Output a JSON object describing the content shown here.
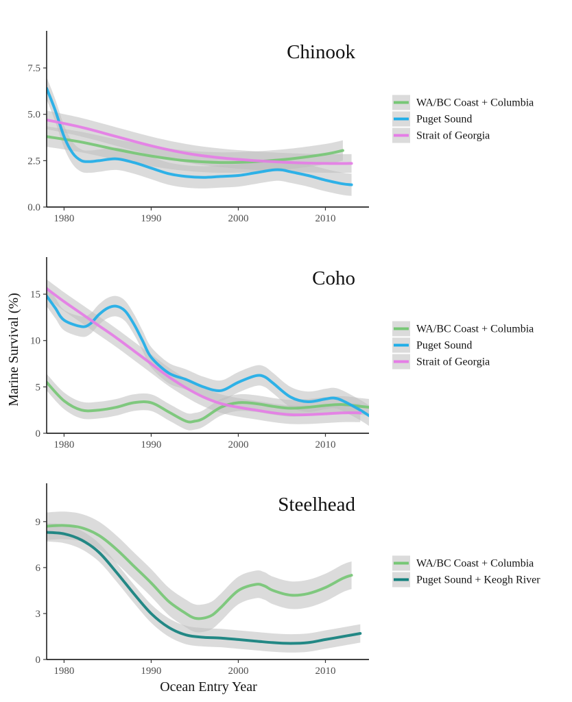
{
  "xlabel": "Ocean Entry Year",
  "ylabel": "Marine Survival (%)",
  "colors": {
    "WA/BC Coast + Columbia": "#77c776",
    "Puget Sound": "#20aee8",
    "Strait of Georgia": "#e57de6",
    "Puget Sound + Keogh River": "#14817e",
    "confidence_band": "#bdbdbd"
  },
  "chart_data": [
    {
      "type": "line",
      "title": "Chinook",
      "xlabel": "",
      "ylabel": "",
      "xlim": [
        1978,
        2015
      ],
      "ylim": [
        0,
        9.5
      ],
      "xticks": [
        1980,
        1990,
        2000,
        2010
      ],
      "yticks": [
        0.0,
        2.5,
        5.0,
        7.5
      ],
      "ytick_labels": [
        "0.0",
        "2.5",
        "5.0",
        "7.5"
      ],
      "grid": false,
      "legend": "right",
      "series": [
        {
          "name": "WA/BC Coast + Columbia",
          "x": [
            1978,
            1982,
            1986,
            1990,
            1994,
            1998,
            2002,
            2006,
            2010,
            2012
          ],
          "y": [
            3.8,
            3.5,
            3.1,
            2.75,
            2.5,
            2.4,
            2.45,
            2.6,
            2.85,
            3.05
          ],
          "band": 0.55
        },
        {
          "name": "Puget Sound",
          "x": [
            1978,
            1979,
            1980,
            1981,
            1982,
            1983,
            1984,
            1986,
            1988,
            1990,
            1992,
            1994,
            1996,
            1998,
            2000,
            2002,
            2004,
            2005,
            2006,
            2008,
            2010,
            2012,
            2013
          ],
          "y": [
            6.4,
            5.2,
            3.8,
            2.9,
            2.5,
            2.45,
            2.5,
            2.6,
            2.4,
            2.1,
            1.8,
            1.65,
            1.6,
            1.65,
            1.7,
            1.85,
            2.0,
            2.0,
            1.9,
            1.7,
            1.45,
            1.25,
            1.2
          ],
          "band": 0.6
        },
        {
          "name": "Strait of Georgia",
          "x": [
            1978,
            1982,
            1986,
            1990,
            1994,
            1998,
            2002,
            2006,
            2010,
            2013
          ],
          "y": [
            4.7,
            4.3,
            3.8,
            3.3,
            2.9,
            2.65,
            2.5,
            2.4,
            2.35,
            2.35
          ],
          "band": 0.5
        }
      ]
    },
    {
      "type": "line",
      "title": "Coho",
      "xlabel": "",
      "ylabel": "",
      "xlim": [
        1978,
        2015
      ],
      "ylim": [
        0,
        19
      ],
      "xticks": [
        1980,
        1990,
        2000,
        2010
      ],
      "yticks": [
        0,
        5,
        10,
        15
      ],
      "ytick_labels": [
        "0",
        "5",
        "10",
        "15"
      ],
      "grid": false,
      "legend": "right",
      "series": [
        {
          "name": "WA/BC Coast + Columbia",
          "x": [
            1978,
            1980,
            1982,
            1984,
            1986,
            1988,
            1990,
            1992,
            1994,
            1995,
            1996,
            1998,
            2000,
            2002,
            2004,
            2006,
            2008,
            2010,
            2012,
            2014,
            2015
          ],
          "y": [
            5.5,
            3.5,
            2.5,
            2.5,
            2.8,
            3.3,
            3.3,
            2.3,
            1.3,
            1.3,
            1.6,
            2.8,
            3.3,
            3.2,
            2.9,
            2.7,
            2.8,
            3.0,
            3.1,
            2.9,
            2.8
          ],
          "band": 0.9
        },
        {
          "name": "Puget Sound",
          "x": [
            1978,
            1979,
            1980,
            1982,
            1983,
            1984,
            1985,
            1986,
            1987,
            1988,
            1989,
            1990,
            1992,
            1994,
            1996,
            1998,
            2000,
            2002,
            2003,
            2004,
            2006,
            2008,
            2010,
            2011,
            2012,
            2014,
            2015
          ],
          "y": [
            14.8,
            13.5,
            12.2,
            11.5,
            11.8,
            12.8,
            13.5,
            13.7,
            13.2,
            11.8,
            10.0,
            8.2,
            6.5,
            5.8,
            5.0,
            4.6,
            5.5,
            6.2,
            6.1,
            5.4,
            3.9,
            3.4,
            3.7,
            3.8,
            3.5,
            2.5,
            1.9
          ],
          "band": 1.1
        },
        {
          "name": "Strait of Georgia",
          "x": [
            1978,
            1980,
            1982,
            1984,
            1986,
            1988,
            1990,
            1992,
            1994,
            1996,
            1998,
            2000,
            2002,
            2004,
            2006,
            2008,
            2010,
            2012,
            2014
          ],
          "y": [
            15.6,
            14.2,
            12.9,
            11.6,
            10.3,
            8.9,
            7.5,
            6.1,
            4.9,
            3.9,
            3.2,
            2.8,
            2.5,
            2.2,
            2.0,
            2.0,
            2.1,
            2.2,
            2.2
          ],
          "band": 1.0
        }
      ]
    },
    {
      "type": "line",
      "title": "Steelhead",
      "xlabel": "Ocean Entry Year",
      "ylabel": "",
      "xlim": [
        1978,
        2015
      ],
      "ylim": [
        0,
        11.5
      ],
      "xticks": [
        1980,
        1990,
        2000,
        2010
      ],
      "yticks": [
        0,
        3,
        6,
        9
      ],
      "ytick_labels": [
        "0",
        "3",
        "6",
        "9"
      ],
      "grid": false,
      "legend": "right",
      "series": [
        {
          "name": "WA/BC Coast + Columbia",
          "x": [
            1978,
            1980,
            1982,
            1984,
            1986,
            1988,
            1990,
            1992,
            1994,
            1995,
            1996,
            1997,
            1998,
            2000,
            2002,
            2003,
            2004,
            2006,
            2008,
            2010,
            2012,
            2013
          ],
          "y": [
            8.7,
            8.75,
            8.6,
            8.1,
            7.2,
            6.1,
            5.0,
            3.8,
            3.0,
            2.7,
            2.7,
            2.9,
            3.4,
            4.5,
            4.9,
            4.8,
            4.5,
            4.2,
            4.3,
            4.7,
            5.3,
            5.5
          ],
          "band": 0.9
        },
        {
          "name": "Puget Sound + Keogh River",
          "x": [
            1978,
            1980,
            1982,
            1984,
            1986,
            1988,
            1990,
            1992,
            1994,
            1996,
            1998,
            2000,
            2002,
            2004,
            2006,
            2008,
            2010,
            2012,
            2014
          ],
          "y": [
            8.3,
            8.2,
            7.8,
            7.0,
            5.7,
            4.3,
            3.0,
            2.1,
            1.6,
            1.45,
            1.4,
            1.3,
            1.2,
            1.1,
            1.05,
            1.1,
            1.3,
            1.5,
            1.7
          ],
          "band": 0.6
        }
      ]
    }
  ]
}
